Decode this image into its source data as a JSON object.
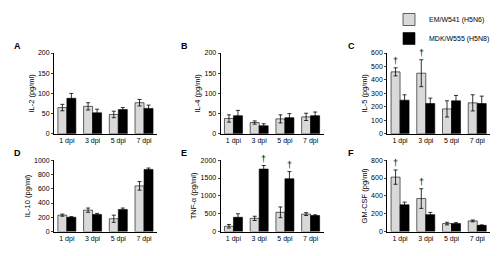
{
  "chart_data": [
    {
      "type": "bar",
      "label": "A",
      "y_label": "IL-2 (pg/ml)",
      "categories": [
        "1 dpi",
        "3 dpi",
        "5 dpi",
        "7 dpi"
      ],
      "ylim": [
        0,
        200
      ],
      "yticks": [
        0,
        50,
        100,
        150,
        200
      ],
      "grid": false,
      "series": [
        {
          "name": "EM/W541 (H5N6)",
          "color": "#d9d9d9",
          "values": [
            65,
            68,
            48,
            77
          ],
          "errors": [
            8,
            9,
            8,
            8
          ]
        },
        {
          "name": "MDK/W555 (H5N8)",
          "color": "#000000",
          "values": [
            88,
            52,
            60,
            63
          ],
          "errors": [
            12,
            9,
            5,
            8
          ]
        }
      ],
      "annotations": []
    },
    {
      "type": "bar",
      "label": "B",
      "y_label": "IL-4 (pg/ml)",
      "categories": [
        "1 dpi",
        "3 dpi",
        "5 dpi",
        "7 dpi"
      ],
      "ylim": [
        0,
        200
      ],
      "yticks": [
        0,
        50,
        100,
        150,
        200
      ],
      "grid": false,
      "series": [
        {
          "name": "EM/W541 (H5N6)",
          "color": "#d9d9d9",
          "values": [
            38,
            28,
            37,
            42
          ],
          "errors": [
            9,
            4,
            10,
            9
          ]
        },
        {
          "name": "MDK/W555 (H5N8)",
          "color": "#000000",
          "values": [
            45,
            20,
            40,
            45
          ],
          "errors": [
            13,
            5,
            10,
            9
          ]
        }
      ],
      "annotations": []
    },
    {
      "type": "bar",
      "label": "C",
      "y_label": "IL-5 (pg/ml)",
      "categories": [
        "1 dpi",
        "3 dpi",
        "5 dpi",
        "7 dpi"
      ],
      "ylim": [
        0,
        600
      ],
      "yticks": [
        0,
        100,
        200,
        300,
        400,
        500,
        600
      ],
      "grid": false,
      "legend": "upper right",
      "series": [
        {
          "name": "EM/W541 (H5N6)",
          "color": "#d9d9d9",
          "values": [
            460,
            450,
            185,
            230
          ],
          "errors": [
            30,
            100,
            60,
            60
          ]
        },
        {
          "name": "MDK/W555 (H5N8)",
          "color": "#000000",
          "values": [
            250,
            225,
            245,
            225
          ],
          "errors": [
            40,
            40,
            40,
            55
          ]
        }
      ],
      "annotations": [
        {
          "text": "†",
          "category": "1 dpi",
          "series": "EM/W541 (H5N6)"
        },
        {
          "text": "†",
          "category": "3 dpi",
          "series": "EM/W541 (H5N6)"
        }
      ]
    },
    {
      "type": "bar",
      "label": "D",
      "y_label": "IL-10 (pg/ml)",
      "categories": [
        "1 dpi",
        "3 dpi",
        "5 dpi",
        "7 dpi"
      ],
      "ylim": [
        0,
        1000
      ],
      "yticks": [
        0,
        200,
        400,
        600,
        800,
        1000
      ],
      "grid": false,
      "series": [
        {
          "name": "EM/W541 (H5N6)",
          "color": "#d9d9d9",
          "values": [
            230,
            300,
            180,
            640
          ],
          "errors": [
            15,
            30,
            50,
            60
          ]
        },
        {
          "name": "MDK/W555 (H5N8)",
          "color": "#000000",
          "values": [
            200,
            240,
            310,
            870
          ],
          "errors": [
            10,
            15,
            20,
            20
          ]
        }
      ],
      "annotations": []
    },
    {
      "type": "bar",
      "label": "E",
      "y_label": "TNF-α (pg/ml)",
      "categories": [
        "1 dpi",
        "3 dpi",
        "5 dpi",
        "7 dpi"
      ],
      "ylim": [
        0,
        2000
      ],
      "yticks": [
        0,
        500,
        1000,
        1500,
        2000
      ],
      "grid": false,
      "series": [
        {
          "name": "EM/W541 (H5N6)",
          "color": "#d9d9d9",
          "values": [
            150,
            370,
            540,
            490
          ],
          "errors": [
            50,
            60,
            150,
            40
          ]
        },
        {
          "name": "MDK/W555 (H5N8)",
          "color": "#000000",
          "values": [
            400,
            1750,
            1480,
            450
          ],
          "errors": [
            100,
            100,
            200,
            20
          ]
        }
      ],
      "annotations": [
        {
          "text": "†",
          "category": "3 dpi",
          "series": "MDK/W555 (H5N8)"
        },
        {
          "text": "†",
          "category": "5 dpi",
          "series": "MDK/W555 (H5N8)"
        }
      ]
    },
    {
      "type": "bar",
      "label": "F",
      "y_label": "GM-CSF (pg/ml)",
      "categories": [
        "1 dpi",
        "3 dpi",
        "5 dpi",
        "7 dpi"
      ],
      "ylim": [
        0,
        800
      ],
      "yticks": [
        0,
        200,
        400,
        600,
        800
      ],
      "grid": false,
      "series": [
        {
          "name": "EM/W541 (H5N6)",
          "color": "#d9d9d9",
          "values": [
            610,
            370,
            90,
            120
          ],
          "errors": [
            80,
            110,
            15,
            10
          ]
        },
        {
          "name": "MDK/W555 (H5N8)",
          "color": "#000000",
          "values": [
            300,
            190,
            90,
            70
          ],
          "errors": [
            30,
            25,
            10,
            5
          ]
        }
      ],
      "annotations": [
        {
          "text": "†",
          "category": "1 dpi",
          "series": "EM/W541 (H5N6)"
        },
        {
          "text": "†",
          "category": "3 dpi",
          "series": "EM/W541 (H5N6)"
        }
      ]
    }
  ]
}
